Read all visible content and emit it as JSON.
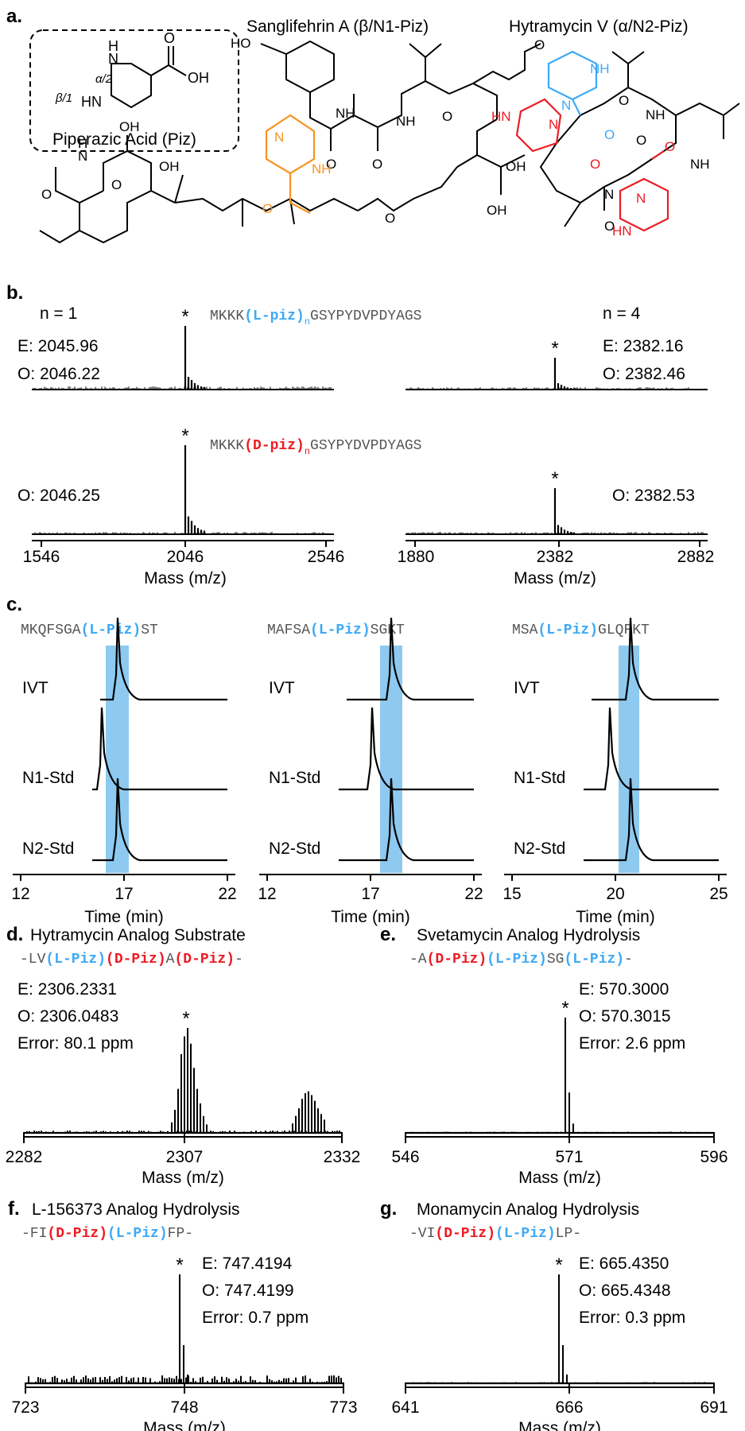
{
  "panel_a": {
    "label": "a.",
    "piz_box": {
      "alpha": "α/2",
      "beta": "β/1",
      "hn": "HN",
      "nh": "N",
      "h": "H",
      "oh": "OH",
      "o": "O",
      "caption": "Piperazic Acid (Piz)"
    },
    "sanglifehrin": {
      "title": "Sanglifehrin A (β/N1-Piz)",
      "ho": "HO",
      "nh": "NH",
      "oh": "OH",
      "o": "O",
      "n": "N",
      "h": "H"
    },
    "hytramycin": {
      "title": "Hytramycin V (α/N2-Piz)",
      "nh": "NH",
      "hn": "HN",
      "n": "N",
      "o": "O"
    }
  },
  "panel_b": {
    "label": "b.",
    "seq_L": {
      "prefix": "MKKK",
      "mid": "(L-piz)",
      "sub": "n",
      "suffix": "GSYPYDVPDYAGS"
    },
    "seq_D": {
      "prefix": "MKKK",
      "mid": "(D-piz)",
      "sub": "n",
      "suffix": "GSYPYDVPDYAGS"
    },
    "n1": "n = 1",
    "n4": "n = 4",
    "L_n1": {
      "E": "E: 2045.96",
      "O": "O: 2046.22"
    },
    "L_n4": {
      "E": "E: 2382.16",
      "O": "O: 2382.46"
    },
    "D_n1": {
      "O": "O: 2046.25"
    },
    "D_n4": {
      "O": "O: 2382.53"
    },
    "axis_left": [
      "1546",
      "2046",
      "2546"
    ],
    "axis_right": [
      "1880",
      "2382",
      "2882"
    ],
    "xlabel": "Mass (m/z)",
    "star": "*"
  },
  "panel_c": {
    "label": "c.",
    "xlabel": "Time (min)",
    "traces": [
      "IVT",
      "N1-Std",
      "N2-Std"
    ],
    "sub": [
      {
        "seq": [
          [
            "MKQFSGA",
            "g"
          ],
          [
            "(L-Piz)",
            "b"
          ],
          [
            "ST",
            "g"
          ]
        ],
        "ticks": [
          "12",
          "17",
          "22"
        ]
      },
      {
        "seq": [
          [
            "MAFSA",
            "g"
          ],
          [
            "(L-Piz)",
            "b"
          ],
          [
            "SGKT",
            "g"
          ]
        ],
        "ticks": [
          "12",
          "17",
          "22"
        ]
      },
      {
        "seq": [
          [
            "MSA",
            "g"
          ],
          [
            "(L-Piz)",
            "b"
          ],
          [
            "GLQFKT",
            "g"
          ]
        ],
        "ticks": [
          "15",
          "20",
          "25"
        ]
      }
    ]
  },
  "panel_d": {
    "label": "d.",
    "title": "Hytramycin Analog Substrate",
    "seq": [
      [
        "-LV",
        "g"
      ],
      [
        "(L-Piz)",
        "b"
      ],
      [
        "(D-Piz)",
        "r"
      ],
      [
        "A",
        "g"
      ],
      [
        "(D-Piz)",
        "r"
      ],
      [
        "-",
        "g"
      ]
    ],
    "E": "E: 2306.2331",
    "O": "O: 2306.0483",
    "err": "Error: 80.1 ppm",
    "ticks": [
      "2282",
      "2307",
      "2332"
    ],
    "xlabel": "Mass (m/z)"
  },
  "panel_e": {
    "label": "e.",
    "title": "Svetamycin Analog Hydrolysis",
    "seq": [
      [
        "-A",
        "g"
      ],
      [
        "(D-Piz)",
        "r"
      ],
      [
        "(L-Piz)",
        "b"
      ],
      [
        "SG",
        "g"
      ],
      [
        "(L-Piz)",
        "b"
      ],
      [
        "-",
        "g"
      ]
    ],
    "E": "E: 570.3000",
    "O": "O: 570.3015",
    "err": "Error: 2.6 ppm",
    "ticks": [
      "546",
      "571",
      "596"
    ],
    "xlabel": "Mass (m/z)"
  },
  "panel_f": {
    "label": "f.",
    "title": "L-156373 Analog Hydrolysis",
    "seq": [
      [
        "-FI",
        "g"
      ],
      [
        "(D-Piz)",
        "r"
      ],
      [
        "(L-Piz)",
        "b"
      ],
      [
        "FP-",
        "g"
      ]
    ],
    "E": "E: 747.4194",
    "O": "O: 747.4199",
    "err": "Error: 0.7 ppm",
    "ticks": [
      "723",
      "748",
      "773"
    ],
    "xlabel": "Mass (m/z)"
  },
  "panel_g": {
    "label": "g.",
    "title": "Monamycin Analog Hydrolysis",
    "seq": [
      [
        "-VI",
        "g"
      ],
      [
        "(D-Piz)",
        "r"
      ],
      [
        "(L-Piz)",
        "b"
      ],
      [
        "LP-",
        "g"
      ]
    ],
    "E": "E: 665.4350",
    "O": "O: 665.4348",
    "err": "Error: 0.3 ppm",
    "ticks": [
      "641",
      "666",
      "691"
    ],
    "xlabel": "Mass (m/z)"
  },
  "colors": {
    "blue": "#3fa9f5",
    "red": "#ed1c24",
    "orange": "#f7931e",
    "grey": "#555555",
    "band": "#8ec9f0"
  }
}
